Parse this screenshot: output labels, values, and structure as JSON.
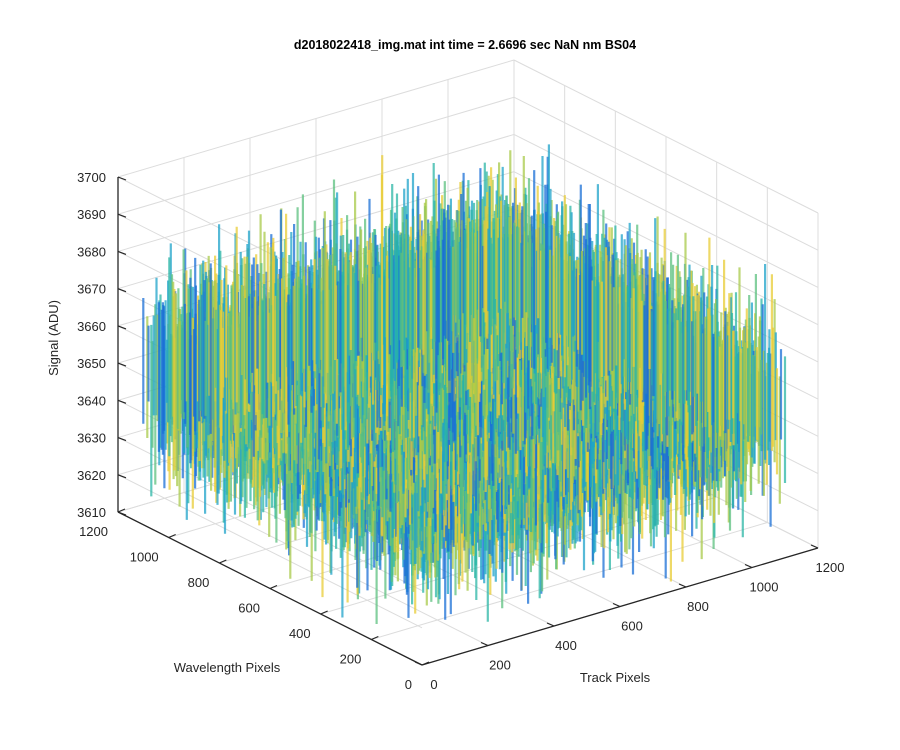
{
  "figure": {
    "title": "d2018022418_img.mat int time = 2.6696 sec  NaN nm BS04"
  },
  "chart_data": {
    "type": "surface",
    "title": "d2018022418_img.mat int time = 2.6696 sec  NaN nm BS04",
    "xlabel": "Track Pixels",
    "ylabel": "Wavelength Pixels",
    "zlabel": "Signal (ADU)",
    "xlim": [
      0,
      1200
    ],
    "ylim": [
      0,
      1200
    ],
    "zlim": [
      3610,
      3700
    ],
    "x_ticks": [
      "0",
      "200",
      "400",
      "600",
      "800",
      "1000",
      "1200"
    ],
    "y_ticks": [
      "0",
      "200",
      "400",
      "600",
      "800",
      "1000",
      "1200"
    ],
    "z_ticks": [
      "3610",
      "3620",
      "3630",
      "3640",
      "3650",
      "3660",
      "3670",
      "3680",
      "3690",
      "3700"
    ],
    "grid": true,
    "surface": {
      "x_range": [
        0,
        1100
      ],
      "y_range": [
        0,
        1100
      ],
      "mean_signal": 3651,
      "noise_range": [
        3612,
        3695
      ]
    },
    "colormap": [
      "#1a6fd6",
      "#1fa3c9",
      "#2bb5a5",
      "#5cc07f",
      "#a8c94a",
      "#e8cc36"
    ],
    "colors": {
      "axis": "#262626",
      "grid": "#dcdcdc",
      "background": "#ffffff"
    }
  }
}
